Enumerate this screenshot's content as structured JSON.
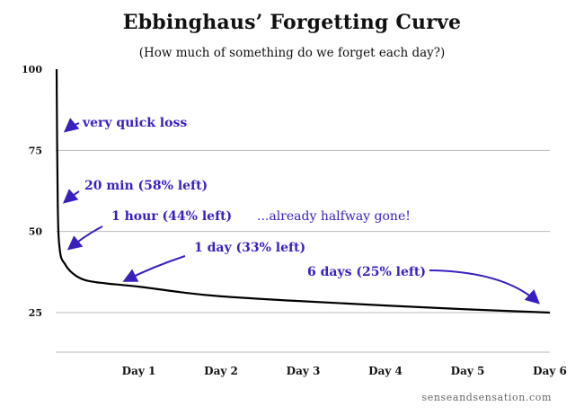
{
  "chart_data": {
    "type": "line",
    "title": "Ebbinghaus’ Forgetting Curve",
    "subtitle": "(How much of something do we forget each day?)",
    "xlabel": "",
    "ylabel": "",
    "x_ticks": [
      "Day 1",
      "Day 2",
      "Day 3",
      "Day 4",
      "Day 5",
      "Day 6"
    ],
    "y_ticks": [
      100,
      75,
      50,
      25
    ],
    "ylim": [
      25,
      100
    ],
    "xlim_days": [
      0,
      6
    ],
    "grid": "horizontal",
    "series": [
      {
        "x_days": [
          0,
          0.014,
          0.04,
          0.1,
          0.2,
          0.35,
          0.6,
          1,
          1.5,
          2,
          3,
          4,
          5,
          6
        ],
        "values": [
          100,
          58,
          44,
          40,
          37,
          35,
          34,
          33,
          31.3,
          30,
          28.5,
          27.2,
          26,
          25
        ]
      }
    ],
    "annotations": [
      {
        "text": "very quick loss",
        "color": "#3a1fc0"
      },
      {
        "text": "20 min (58% left)",
        "color": "#3a1fc0"
      },
      {
        "text": "1 hour (44% left)",
        "color": "#3a1fc0"
      },
      {
        "text": "...already halfway gone!",
        "color": "#3a1fc0"
      },
      {
        "text": "1 day (33% left)",
        "color": "#3a1fc0"
      },
      {
        "text": "6 days (25% left)",
        "color": "#3a1fc0"
      }
    ]
  },
  "credit": "senseandsensation.com",
  "colors": {
    "annotation": "#3a1fc0",
    "curve": "#000000",
    "grid": "#b8b8b8"
  }
}
